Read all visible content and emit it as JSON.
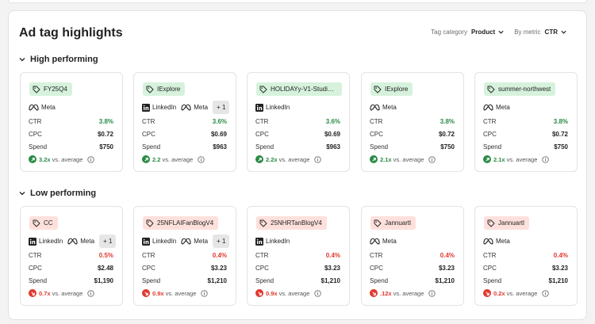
{
  "panel": {
    "title": "Ad tag highlights"
  },
  "filters": {
    "tag_category_label": "Tag category",
    "tag_category_value": "Product",
    "metric_label": "By metric",
    "metric_value": "CTR"
  },
  "colors": {
    "positive": "#2a8a44",
    "negative": "#e0382d",
    "tag_green_bg": "#d6f2dc",
    "tag_red_bg": "#fde0dc"
  },
  "labels": {
    "ctr": "CTR",
    "cpc": "CPC",
    "spend": "Spend",
    "vs_average": "vs. average"
  },
  "sections": [
    {
      "title": "High performing",
      "trend": "up",
      "cards": [
        {
          "tag": "FY25Q4",
          "channels": [
            "Meta"
          ],
          "more": "",
          "ctr": "3.8%",
          "cpc": "$0.72",
          "spend": "$750",
          "mult": "3.2x"
        },
        {
          "tag": "IExplore",
          "channels": [
            "LinkedIn",
            "Meta"
          ],
          "more": "+ 1",
          "ctr": "3.6%",
          "cpc": "$0.69",
          "spend": "$963",
          "mult": "2.2"
        },
        {
          "tag": "HOLIDAYy-V1-Studio-...",
          "channels": [
            "LinkedIn"
          ],
          "more": "",
          "ctr": "3.6%",
          "cpc": "$0.69",
          "spend": "$963",
          "mult": "2.2x"
        },
        {
          "tag": "IExplore",
          "channels": [
            "Meta"
          ],
          "more": "",
          "ctr": "3.8%",
          "cpc": "$0.72",
          "spend": "$750",
          "mult": "2.1x"
        },
        {
          "tag": "summer-northwest",
          "channels": [
            "Meta"
          ],
          "more": "",
          "ctr": "3.8%",
          "cpc": "$0.72",
          "spend": "$750",
          "mult": "2.1x"
        }
      ]
    },
    {
      "title": "Low performing",
      "trend": "down",
      "cards": [
        {
          "tag": "CC",
          "channels": [
            "LinkedIn",
            "Meta"
          ],
          "more": "+ 1",
          "ctr": "0.5%",
          "cpc": "$2.48",
          "spend": "$1,190",
          "mult": "0.7x"
        },
        {
          "tag": "25NFLAIFanBlogV4",
          "channels": [
            "LinkedIn",
            "Meta"
          ],
          "more": "+ 1",
          "ctr": "0.4%",
          "cpc": "$3.23",
          "spend": "$1,210",
          "mult": "0.9x"
        },
        {
          "tag": "25NHRTanBlogV4",
          "channels": [
            "LinkedIn"
          ],
          "more": "",
          "ctr": "0.4%",
          "cpc": "$3.23",
          "spend": "$1,210",
          "mult": "0.9x"
        },
        {
          "tag": "Jannuartl",
          "channels": [
            "Meta"
          ],
          "more": "",
          "ctr": "0.4%",
          "cpc": "$3.23",
          "spend": "$1,210",
          "mult": ".12x"
        },
        {
          "tag": "Jannuartl",
          "channels": [
            "Meta"
          ],
          "more": "",
          "ctr": "0.4%",
          "cpc": "$3.23",
          "spend": "$1,210",
          "mult": "0.2x"
        }
      ]
    }
  ]
}
